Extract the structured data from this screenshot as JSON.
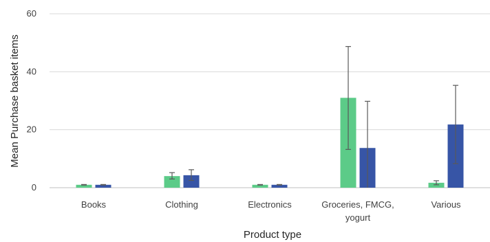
{
  "chart_data": {
    "type": "bar",
    "title": "",
    "xlabel": "Product type",
    "ylabel": "Mean Purchase basket items",
    "ylim": [
      0,
      60
    ],
    "yticks": [
      0,
      20,
      40,
      60
    ],
    "grid": true,
    "legend": "none",
    "categories": [
      "Books",
      "Clothing",
      "Electronics",
      "Groceries, FMCG,\nyogurt",
      "Various"
    ],
    "series": [
      {
        "color": "#5ccb88",
        "values": [
          1.0,
          4.0,
          1.0,
          31.0,
          1.7
        ],
        "err_low": [
          0.9,
          3.0,
          0.9,
          13.2,
          1.0
        ],
        "err_high": [
          1.1,
          5.2,
          1.1,
          48.7,
          2.4
        ]
      },
      {
        "color": "#3755a6",
        "values": [
          1.0,
          4.3,
          1.0,
          13.7,
          21.8
        ],
        "err_low": [
          0.9,
          2.5,
          0.9,
          0,
          8.3
        ],
        "err_high": [
          1.1,
          6.2,
          1.1,
          29.8,
          35.3
        ]
      }
    ]
  }
}
